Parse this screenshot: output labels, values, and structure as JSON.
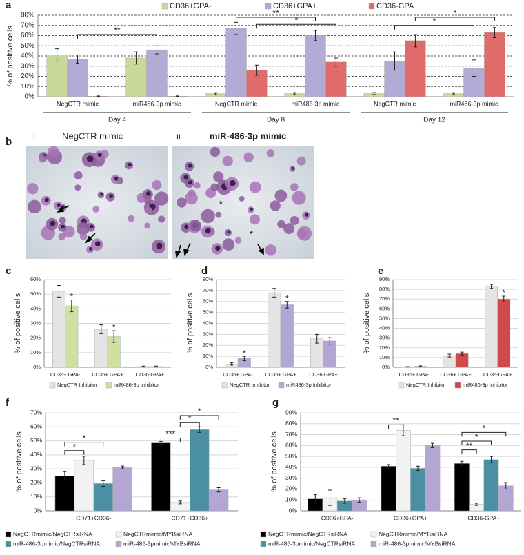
{
  "panel_labels": [
    "a",
    "b",
    "c",
    "d",
    "e",
    "f",
    "g"
  ],
  "micrographs": [
    {
      "numeral": "i",
      "caption": "NegCTR mimic",
      "marks": []
    },
    {
      "numeral": "ii",
      "caption": "miR-486-3p mimic",
      "marks": [
        "*",
        "*"
      ]
    }
  ],
  "chart_data": [
    {
      "type": "bar",
      "ylabel": "% of positive cells",
      "categories": [
        "NegCTR mimic",
        "miR486-3p mimic",
        "NegCTR mimic",
        "miR486-3p mimic",
        "NegCTR mimic",
        "miR486-3p mimic"
      ],
      "groups": [
        "Day 4",
        "Day 8",
        "Day 12"
      ],
      "series": [
        {
          "name": "CD36+GPA-",
          "color": "#c9d89b",
          "values": [
            41,
            38,
            3,
            3,
            3,
            3
          ],
          "errors": [
            6,
            6,
            1,
            1,
            1,
            1
          ]
        },
        {
          "name": "CD36+GPA+",
          "color": "#b4aad6",
          "values": [
            37,
            46,
            67,
            60,
            35,
            28
          ],
          "errors": [
            4,
            4,
            6,
            5,
            9,
            8
          ]
        },
        {
          "name": "CD36-GPA+",
          "color": "#e06b6b",
          "values": [
            0.5,
            0.5,
            26,
            34,
            55,
            63
          ],
          "errors": [
            0.3,
            0.3,
            5,
            4,
            6,
            5
          ]
        }
      ],
      "ylim": [
        0,
        80
      ],
      "yticks": [
        {
          "value": 0,
          "label": "0%"
        },
        {
          "value": 10,
          "label": "10%"
        },
        {
          "value": 20,
          "label": "20%"
        },
        {
          "value": 30,
          "label": "30%"
        },
        {
          "value": 40,
          "label": "40%"
        },
        {
          "value": 50,
          "label": "50%"
        },
        {
          "value": 60,
          "label": "60%"
        },
        {
          "value": 70,
          "label": "70%"
        },
        {
          "value": 80,
          "label": "80%"
        }
      ],
      "grid": "dashed",
      "legend": "top",
      "annotations": [
        "**",
        "**",
        "*",
        "*",
        "*"
      ]
    },
    {
      "type": "bar",
      "ylabel": "% of positive cells",
      "categories": [
        "CD36+ GPA-",
        "CD36+ GPA+",
        "CD36-GPA+"
      ],
      "series": [
        {
          "name": "NegCTR Inhibitor",
          "color": "#e4e4e4",
          "values": [
            52,
            26,
            0.5
          ],
          "errors": [
            4,
            3,
            0.3
          ]
        },
        {
          "name": "miR486-3p Inhibitor",
          "color": "#cfe0a0",
          "values": [
            42,
            21,
            0.5
          ],
          "errors": [
            4,
            4,
            0.3
          ]
        }
      ],
      "ylim": [
        0,
        60
      ],
      "yticks": [
        {
          "value": 0,
          "label": "0%"
        },
        {
          "value": 10,
          "label": "10%"
        },
        {
          "value": 20,
          "label": "20%"
        },
        {
          "value": 30,
          "label": "30%"
        },
        {
          "value": 40,
          "label": "40%"
        },
        {
          "value": 50,
          "label": "50%"
        },
        {
          "value": 60,
          "label": "60%"
        }
      ],
      "grid": "solid",
      "legend": "bottom",
      "annotations": [
        "*",
        "*"
      ]
    },
    {
      "type": "bar",
      "ylabel": "% of positive cells",
      "categories": [
        "CD36+ GPA-",
        "CD36+ GPA+",
        "CD36-GPA+"
      ],
      "series": [
        {
          "name": "NegCTR Inhibitor",
          "color": "#e4e4e4",
          "values": [
            3,
            68,
            26
          ],
          "errors": [
            1,
            4,
            4
          ]
        },
        {
          "name": "miR486-3p Inhibitor",
          "color": "#b4a6d4",
          "values": [
            8,
            57,
            24
          ],
          "errors": [
            2,
            3,
            3
          ]
        }
      ],
      "ylim": [
        0,
        80
      ],
      "yticks": [
        {
          "value": 0,
          "label": "0%"
        },
        {
          "value": 10,
          "label": "10%"
        },
        {
          "value": 20,
          "label": "20%"
        },
        {
          "value": 30,
          "label": "30%"
        },
        {
          "value": 40,
          "label": "40%"
        },
        {
          "value": 50,
          "label": "50%"
        },
        {
          "value": 60,
          "label": "60%"
        },
        {
          "value": 70,
          "label": "70%"
        },
        {
          "value": 80,
          "label": "80%"
        }
      ],
      "grid": "solid",
      "legend": "bottom",
      "annotations": [
        "*",
        "*"
      ]
    },
    {
      "type": "bar",
      "ylabel": "% of positive cells",
      "categories": [
        "CD36+ GPA-",
        "CD36+ GPA+",
        "CD36-GPA+"
      ],
      "series": [
        {
          "name": "NegCTR Inhibitor",
          "color": "#e4e4e4",
          "values": [
            0.5,
            12,
            83
          ],
          "errors": [
            0.2,
            1.5,
            2
          ]
        },
        {
          "name": "miR486-3p Inhibitor",
          "color": "#cf4a4a",
          "values": [
            1,
            14,
            70
          ],
          "errors": [
            0.5,
            1.5,
            3
          ]
        }
      ],
      "ylim": [
        0,
        90
      ],
      "yticks": [
        {
          "value": 0,
          "label": "0%"
        },
        {
          "value": 10,
          "label": "10%"
        },
        {
          "value": 20,
          "label": "20%"
        },
        {
          "value": 30,
          "label": "30%"
        },
        {
          "value": 40,
          "label": "40%"
        },
        {
          "value": 50,
          "label": "50%"
        },
        {
          "value": 60,
          "label": "60%"
        },
        {
          "value": 70,
          "label": "70%"
        },
        {
          "value": 80,
          "label": "80%"
        },
        {
          "value": 90,
          "label": "90%"
        }
      ],
      "grid": "solid",
      "legend": "bottom",
      "annotations": [
        "*"
      ]
    },
    {
      "type": "bar",
      "ylabel": "% of positive cells",
      "categories": [
        "CD71+CD36-",
        "CD71+CD36+"
      ],
      "series": [
        {
          "name": "NegCTRmimic/NegCTRsiRNA",
          "color": "#000000",
          "values": [
            25,
            48.5
          ],
          "errors": [
            3,
            1
          ]
        },
        {
          "name": "NegCTRmimic/MYBsiRNA",
          "color": "#f2f2f2",
          "values": [
            36,
            6
          ],
          "errors": [
            3,
            1
          ]
        },
        {
          "name": "miR-486-3pmimic/NegCTRsiRNA",
          "color": "#4a8fa3",
          "values": [
            19.5,
            58
          ],
          "errors": [
            2,
            2
          ]
        },
        {
          "name": "miR-486-3pmimic/MYBsiRNA",
          "color": "#b4a6d4",
          "values": [
            31,
            15
          ],
          "errors": [
            1,
            1.5
          ]
        }
      ],
      "ylim": [
        0,
        70
      ],
      "yticks": [
        {
          "value": 0,
          "label": "0%"
        },
        {
          "value": 10,
          "label": "10%"
        },
        {
          "value": 20,
          "label": "20%"
        },
        {
          "value": 30,
          "label": "30%"
        },
        {
          "value": 40,
          "label": "40%"
        },
        {
          "value": 50,
          "label": "50%"
        },
        {
          "value": 60,
          "label": "60%"
        },
        {
          "value": 70,
          "label": "70%"
        }
      ],
      "grid": "solid",
      "legend": "grid",
      "annotations": [
        "*",
        "*",
        "***",
        "*",
        "*"
      ]
    },
    {
      "type": "bar",
      "ylabel": "% of positive cells",
      "categories": [
        "CD36+GPA-",
        "CD36+GPA+",
        "CD36-GPA+"
      ],
      "series": [
        {
          "name": "NegCTRmimic/NegCTRsiRNA",
          "color": "#000000",
          "values": [
            11,
            41,
            43.5
          ],
          "errors": [
            4,
            1.5,
            2
          ]
        },
        {
          "name": "NegCTRmimic/MYBsiRNA",
          "color": "#f2f2f2",
          "values": [
            12,
            74,
            6
          ],
          "errors": [
            7,
            5,
            1
          ]
        },
        {
          "name": "miR-486-3pmimic/NegCTRsiRNA",
          "color": "#4a8fa3",
          "values": [
            9,
            39,
            47
          ],
          "errors": [
            2,
            2,
            3
          ]
        },
        {
          "name": "miR-486-3pmimic/MYBsiRNA",
          "color": "#b4a6d4",
          "values": [
            10,
            60,
            23
          ],
          "errors": [
            2,
            2,
            3
          ]
        }
      ],
      "ylim": [
        0,
        90
      ],
      "yticks": [
        {
          "value": 0,
          "label": "0%"
        },
        {
          "value": 10,
          "label": "10%"
        },
        {
          "value": 20,
          "label": "20%"
        },
        {
          "value": 30,
          "label": "30%"
        },
        {
          "value": 40,
          "label": "40%"
        },
        {
          "value": 50,
          "label": "50%"
        },
        {
          "value": 60,
          "label": "60%"
        },
        {
          "value": 70,
          "label": "70%"
        },
        {
          "value": 80,
          "label": "80%"
        },
        {
          "value": 90,
          "label": "90%"
        }
      ],
      "grid": "solid",
      "legend": "grid",
      "annotations": [
        "**",
        "**",
        "*",
        "*"
      ]
    }
  ]
}
